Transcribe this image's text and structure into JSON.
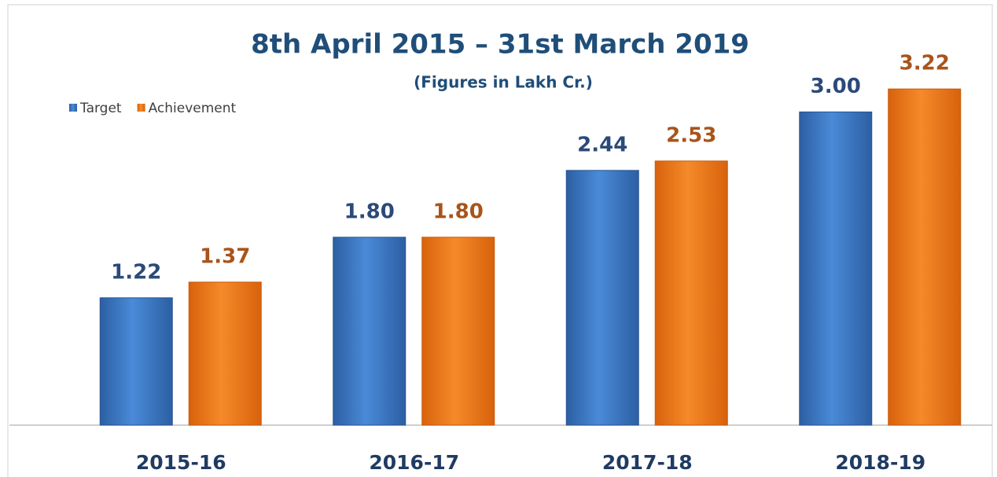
{
  "chart_data": {
    "type": "bar",
    "title": "8th  April 2015 – 31st March 2019",
    "subtitle": "(Figures in Lakh Cr.)",
    "categories": [
      "2015-16",
      "2016-17",
      "2017-18",
      "2018-19"
    ],
    "series": [
      {
        "name": "Target",
        "color": "#3a78c9",
        "values": [
          1.22,
          1.8,
          2.44,
          3
        ],
        "value_labels": [
          "1.22",
          "1.80",
          "2.44",
          "3.00"
        ]
      },
      {
        "name": "Achievement",
        "color": "#ef7a1a",
        "values": [
          1.37,
          1.8,
          2.53,
          3.22
        ],
        "value_labels": [
          "1.37",
          "1.80",
          "2.53",
          "3.22"
        ]
      }
    ],
    "ylim": [
      0,
      3.5
    ],
    "legend": "top-left",
    "grid": false
  }
}
